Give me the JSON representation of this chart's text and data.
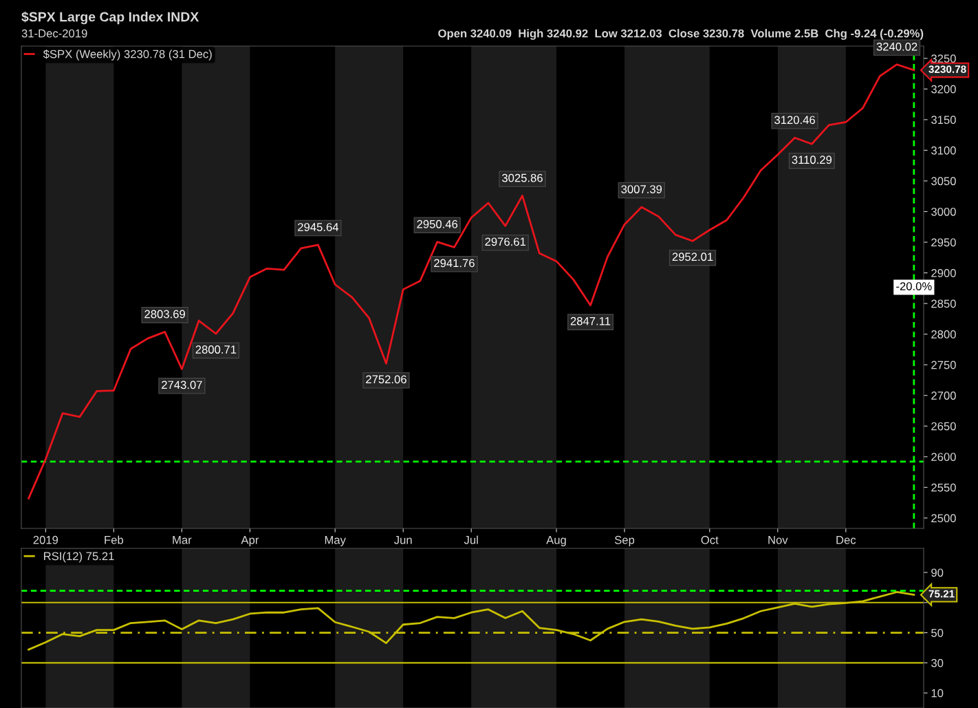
{
  "chart_data": [
    {
      "type": "line",
      "title": "$SPX Large Cap Index INDX",
      "subtitle": "31-Dec-2019",
      "annotations": [
        "Open 3240.09  High 3240.92  Low 3212.03  Close 3230.78  Volume 2.5B  Chg -9.24 (-0.29%)",
        {
          "text": "2803.69",
          "x": "2019-02-25",
          "y": 2803.69
        },
        {
          "text": "2743.07",
          "x": "2019-03-04",
          "y": 2743.07
        },
        {
          "text": "2800.71",
          "x": "2019-03-18",
          "y": 2800.71
        },
        {
          "text": "2945.64",
          "x": "2019-04-29",
          "y": 2945.64
        },
        {
          "text": "2752.06",
          "x": "2019-05-27",
          "y": 2752.06
        },
        {
          "text": "2950.46",
          "x": "2019-06-17",
          "y": 2950.46
        },
        {
          "text": "2941.76",
          "x": "2019-06-24",
          "y": 2941.76
        },
        {
          "text": "2976.61",
          "x": "2019-07-15",
          "y": 2976.61
        },
        {
          "text": "3025.86",
          "x": "2019-07-22",
          "y": 3025.86
        },
        {
          "text": "2847.11",
          "x": "2019-08-19",
          "y": 2847.11
        },
        {
          "text": "3007.39",
          "x": "2019-09-09",
          "y": 3007.39
        },
        {
          "text": "2952.01",
          "x": "2019-09-30",
          "y": 2952.01
        },
        {
          "text": "3120.46",
          "x": "2019-11-11",
          "y": 3120.46
        },
        {
          "text": "3110.29",
          "x": "2019-11-18",
          "y": 3110.29
        },
        {
          "text": "3240.02",
          "x": "2019-12-23",
          "y": 3240.02
        },
        {
          "text": "3230.78",
          "x": "2019-12-30",
          "y": 3230.78
        }
      ],
      "x": [
        "2018-12-31",
        "2019-01-07",
        "2019-01-14",
        "2019-01-21",
        "2019-01-28",
        "2019-02-04",
        "2019-02-11",
        "2019-02-18",
        "2019-02-25",
        "2019-03-04",
        "2019-03-11",
        "2019-03-18",
        "2019-03-25",
        "2019-04-01",
        "2019-04-08",
        "2019-04-15",
        "2019-04-22",
        "2019-04-29",
        "2019-05-06",
        "2019-05-13",
        "2019-05-20",
        "2019-05-27",
        "2019-06-03",
        "2019-06-10",
        "2019-06-17",
        "2019-06-24",
        "2019-07-01",
        "2019-07-08",
        "2019-07-15",
        "2019-07-22",
        "2019-07-29",
        "2019-08-05",
        "2019-08-12",
        "2019-08-19",
        "2019-08-26",
        "2019-09-02",
        "2019-09-09",
        "2019-09-16",
        "2019-09-23",
        "2019-09-30",
        "2019-10-07",
        "2019-10-14",
        "2019-10-21",
        "2019-10-28",
        "2019-11-04",
        "2019-11-11",
        "2019-11-18",
        "2019-11-25",
        "2019-12-02",
        "2019-12-09",
        "2019-12-16",
        "2019-12-23",
        "2019-12-30"
      ],
      "series": [
        {
          "name": "$SPX (Weekly) 3230.78 (31 Dec)",
          "color": "#e8141c",
          "values": [
            2532,
            2596,
            2671,
            2665,
            2707,
            2708,
            2776,
            2793,
            2803.69,
            2743.07,
            2822,
            2800.71,
            2834,
            2893,
            2907,
            2905,
            2940,
            2945.64,
            2881,
            2860,
            2826,
            2752.06,
            2873,
            2887,
            2950.46,
            2941.76,
            2990,
            3014,
            2976.61,
            3025.86,
            2932,
            2919,
            2889,
            2847.11,
            2926,
            2979,
            3007.39,
            2992,
            2962,
            2952.01,
            2970,
            2986,
            3023,
            3067,
            3093,
            3120.46,
            3110.29,
            3141,
            3146,
            3169,
            3221,
            3240.02,
            3230.78
          ]
        }
      ],
      "xlim": [
        "2018-12-28",
        "2020-01-03"
      ],
      "xticks": [
        {
          "value": "2019-01-07",
          "label": "2019"
        },
        {
          "value": "2019-02-04",
          "label": "Feb"
        },
        {
          "value": "2019-03-04",
          "label": "Mar"
        },
        {
          "value": "2019-04-01",
          "label": "Apr"
        },
        {
          "value": "2019-05-06",
          "label": "May"
        },
        {
          "value": "2019-06-03",
          "label": "Jun"
        },
        {
          "value": "2019-07-01",
          "label": "Jul"
        },
        {
          "value": "2019-08-05",
          "label": "Aug"
        },
        {
          "value": "2019-09-02",
          "label": "Sep"
        },
        {
          "value": "2019-10-07",
          "label": "Oct"
        },
        {
          "value": "2019-11-04",
          "label": "Nov"
        },
        {
          "value": "2019-12-02",
          "label": "Dec"
        }
      ],
      "ylim": [
        2483,
        3270
      ],
      "yticks": [
        2500,
        2550,
        2600,
        2650,
        2700,
        2750,
        2800,
        2850,
        2900,
        2950,
        3000,
        3050,
        3100,
        3150,
        3200,
        3250
      ],
      "ref_lines": [
        {
          "axis": "y",
          "value": 2592,
          "color": "#00ff00",
          "line_style": "dashed"
        },
        {
          "axis": "x",
          "value": "2019-12-30",
          "label": "-20.0%",
          "color": "#00ff00",
          "line_style": "dashed"
        }
      ],
      "bands": [
        {
          "axis": "x",
          "from": "2019-01-07",
          "to": "2019-02-04",
          "color": "#1c1c1c"
        },
        {
          "axis": "x",
          "from": "2019-03-04",
          "to": "2019-04-01",
          "color": "#1c1c1c"
        },
        {
          "axis": "x",
          "from": "2019-05-06",
          "to": "2019-06-03",
          "color": "#1c1c1c"
        },
        {
          "axis": "x",
          "from": "2019-07-01",
          "to": "2019-08-05",
          "color": "#1c1c1c"
        },
        {
          "axis": "x",
          "from": "2019-09-02",
          "to": "2019-10-07",
          "color": "#1c1c1c"
        },
        {
          "axis": "x",
          "from": "2019-11-04",
          "to": "2019-12-02",
          "color": "#1c1c1c"
        }
      ],
      "legend": "top left",
      "grid": false,
      "line_style": "solid",
      "marker": "none"
    },
    {
      "type": "line",
      "annotations": [
        {
          "text": "75.21",
          "x": "2019-12-30",
          "y": 75.21
        }
      ],
      "x": [
        "2018-12-31",
        "2019-01-07",
        "2019-01-14",
        "2019-01-21",
        "2019-01-28",
        "2019-02-04",
        "2019-02-11",
        "2019-02-18",
        "2019-02-25",
        "2019-03-04",
        "2019-03-11",
        "2019-03-18",
        "2019-03-25",
        "2019-04-01",
        "2019-04-08",
        "2019-04-15",
        "2019-04-22",
        "2019-04-29",
        "2019-05-06",
        "2019-05-13",
        "2019-05-20",
        "2019-05-27",
        "2019-06-03",
        "2019-06-10",
        "2019-06-17",
        "2019-06-24",
        "2019-07-01",
        "2019-07-08",
        "2019-07-15",
        "2019-07-22",
        "2019-07-29",
        "2019-08-05",
        "2019-08-12",
        "2019-08-19",
        "2019-08-26",
        "2019-09-02",
        "2019-09-09",
        "2019-09-16",
        "2019-09-23",
        "2019-09-30",
        "2019-10-07",
        "2019-10-14",
        "2019-10-21",
        "2019-10-28",
        "2019-11-04",
        "2019-11-11",
        "2019-11-18",
        "2019-11-25",
        "2019-12-02",
        "2019-12-09",
        "2019-12-16",
        "2019-12-23",
        "2019-12-30"
      ],
      "series": [
        {
          "name": "RSI(12) 75.21",
          "color": "#c8c000",
          "values": [
            38.8,
            43.6,
            49.1,
            47.7,
            51.8,
            51.8,
            56.4,
            57.2,
            58.1,
            52.3,
            58.1,
            56.4,
            58.9,
            62.6,
            63.4,
            63.4,
            65.5,
            66.3,
            57.0,
            53.9,
            50.6,
            43.1,
            55.4,
            56.4,
            60.5,
            59.7,
            63.4,
            65.5,
            59.7,
            64.3,
            53.2,
            51.8,
            49.1,
            44.9,
            52.6,
            57.2,
            58.9,
            57.4,
            54.7,
            52.6,
            53.5,
            56.0,
            59.6,
            64.3,
            66.8,
            69.3,
            67.2,
            68.9,
            69.7,
            70.9,
            74.0,
            77.0,
            75.21
          ]
        }
      ],
      "xlim": [
        "2018-12-28",
        "2020-01-03"
      ],
      "ylim": [
        0,
        106
      ],
      "yticks": [
        10,
        30,
        50,
        {
          "value": 70,
          "label": null
        },
        90
      ],
      "tick_labels": "y",
      "ref_lines": [
        {
          "axis": "y",
          "value": 77.8,
          "color": "#00ff00",
          "line_style": "dashed"
        },
        {
          "axis": "y",
          "value": 70,
          "color": "#c8c000",
          "line_style": "solid"
        },
        {
          "axis": "y",
          "value": 50,
          "color": "#c8c000",
          "line_style": "dashdot"
        },
        {
          "axis": "y",
          "value": 30,
          "color": "#c8c000",
          "line_style": "solid"
        }
      ],
      "bands": [
        {
          "axis": "x",
          "from": "2019-01-07",
          "to": "2019-02-04",
          "color": "#1c1c1c"
        },
        {
          "axis": "x",
          "from": "2019-03-04",
          "to": "2019-04-01",
          "color": "#1c1c1c"
        },
        {
          "axis": "x",
          "from": "2019-05-06",
          "to": "2019-06-03",
          "color": "#1c1c1c"
        },
        {
          "axis": "x",
          "from": "2019-07-01",
          "to": "2019-08-05",
          "color": "#1c1c1c"
        },
        {
          "axis": "x",
          "from": "2019-09-02",
          "to": "2019-10-07",
          "color": "#1c1c1c"
        },
        {
          "axis": "x",
          "from": "2019-11-04",
          "to": "2019-12-02",
          "color": "#1c1c1c"
        }
      ],
      "legend": "top left",
      "grid": false,
      "line_style": "solid",
      "marker": "none"
    }
  ]
}
